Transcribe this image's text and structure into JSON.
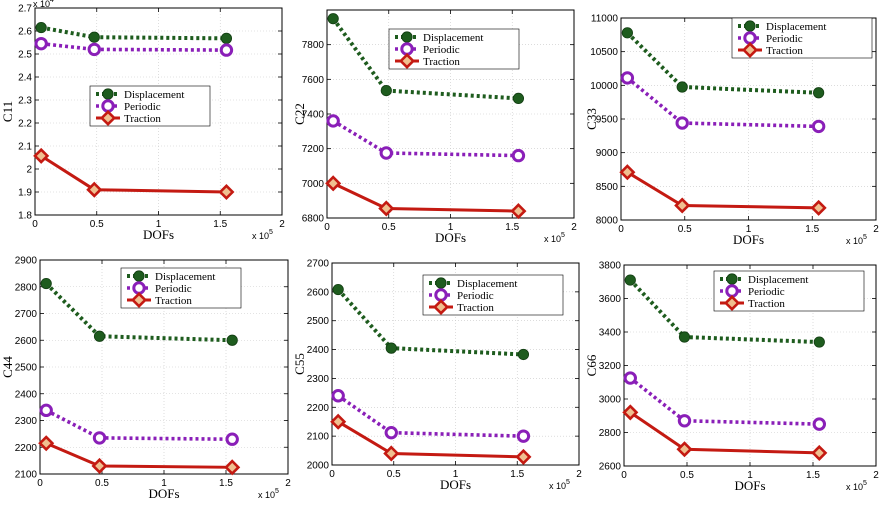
{
  "colors": {
    "displacement": "#1e5c1e",
    "periodic": "#8a1fb8",
    "traction": "#c41a12",
    "traction_marker_fill": "#f0c090"
  },
  "legend_labels": [
    "Displacement",
    "Periodic",
    "Traction"
  ],
  "chart_data": [
    {
      "type": "line",
      "xlabel": "DOFs",
      "ylabel": "C11",
      "x_multiplier": "x 10^5",
      "y_multiplier": "x 10^4",
      "xlim": [
        0,
        2
      ],
      "ylim": [
        1.8,
        2.7
      ],
      "xticks": [
        "0",
        "0.5",
        "1",
        "1.5",
        "2"
      ],
      "yticks": [
        "1.8",
        "1.9",
        "2",
        "2.1",
        "2.2",
        "2.3",
        "2.4",
        "2.5",
        "2.6",
        "2.7"
      ],
      "legend": "center",
      "x": [
        0.05,
        0.48,
        1.55
      ],
      "series": [
        {
          "name": "Displacement",
          "values": [
            2.615,
            2.573,
            2.568
          ]
        },
        {
          "name": "Periodic",
          "values": [
            2.545,
            2.52,
            2.517
          ]
        },
        {
          "name": "Traction",
          "values": [
            2.057,
            1.91,
            1.9
          ]
        }
      ]
    },
    {
      "type": "line",
      "xlabel": "DOFs",
      "ylabel": "C22",
      "x_multiplier": "x 10^5",
      "xlim": [
        0,
        2
      ],
      "ylim": [
        6800,
        8000
      ],
      "xticks": [
        "0",
        "0.5",
        "1",
        "1.5",
        "2"
      ],
      "yticks": [
        "6800",
        "7000",
        "7200",
        "7400",
        "7600",
        "7800"
      ],
      "legend": "top-right",
      "x": [
        0.05,
        0.48,
        1.55
      ],
      "series": [
        {
          "name": "Displacement",
          "values": [
            7950,
            7535,
            7490
          ]
        },
        {
          "name": "Periodic",
          "values": [
            7360,
            7175,
            7160
          ]
        },
        {
          "name": "Traction",
          "values": [
            7000,
            6855,
            6840
          ]
        }
      ]
    },
    {
      "type": "line",
      "xlabel": "DOFs",
      "ylabel": "C33",
      "x_multiplier": "x 10^5",
      "xlim": [
        0,
        2
      ],
      "ylim": [
        8000,
        11000
      ],
      "xticks": [
        "0",
        "0.5",
        "1",
        "1.5",
        "2"
      ],
      "yticks": [
        "8000",
        "8500",
        "9000",
        "9500",
        "10000",
        "10500",
        "11000"
      ],
      "legend": "top-right",
      "x": [
        0.05,
        0.48,
        1.55
      ],
      "series": [
        {
          "name": "Displacement",
          "values": [
            10780,
            9975,
            9890
          ]
        },
        {
          "name": "Periodic",
          "values": [
            10110,
            9440,
            9390
          ]
        },
        {
          "name": "Traction",
          "values": [
            8710,
            8215,
            8180
          ]
        }
      ]
    },
    {
      "type": "line",
      "xlabel": "DOFs",
      "ylabel": "C44",
      "x_multiplier": "x 10^5",
      "xlim": [
        0,
        2
      ],
      "ylim": [
        2100,
        2900
      ],
      "xticks": [
        "0",
        "0.5",
        "1",
        "1.5",
        "2"
      ],
      "yticks": [
        "2100",
        "2200",
        "2300",
        "2400",
        "2500",
        "2600",
        "2700",
        "2800",
        "2900"
      ],
      "legend": "top-right",
      "x": [
        0.05,
        0.48,
        1.55
      ],
      "series": [
        {
          "name": "Displacement",
          "values": [
            2812,
            2615,
            2600
          ]
        },
        {
          "name": "Periodic",
          "values": [
            2338,
            2235,
            2230
          ]
        },
        {
          "name": "Traction",
          "values": [
            2215,
            2130,
            2125
          ]
        }
      ]
    },
    {
      "type": "line",
      "xlabel": "DOFs",
      "ylabel": "C55",
      "x_multiplier": "x 10^5",
      "xlim": [
        0,
        2
      ],
      "ylim": [
        2000,
        2700
      ],
      "xticks": [
        "0",
        "0.5",
        "1",
        "1.5",
        "2"
      ],
      "yticks": [
        "2000",
        "2100",
        "2200",
        "2300",
        "2400",
        "2500",
        "2600",
        "2700"
      ],
      "legend": "top-right",
      "x": [
        0.05,
        0.48,
        1.55
      ],
      "series": [
        {
          "name": "Displacement",
          "values": [
            2608,
            2405,
            2383
          ]
        },
        {
          "name": "Periodic",
          "values": [
            2240,
            2112,
            2100
          ]
        },
        {
          "name": "Traction",
          "values": [
            2150,
            2040,
            2028
          ]
        }
      ]
    },
    {
      "type": "line",
      "xlabel": "DOFs",
      "ylabel": "C66",
      "x_multiplier": "x 10^5",
      "xlim": [
        0,
        2
      ],
      "ylim": [
        2600,
        3800
      ],
      "xticks": [
        "0",
        "0.5",
        "1",
        "1.5",
        "2"
      ],
      "yticks": [
        "2600",
        "2800",
        "3000",
        "3200",
        "3400",
        "3600",
        "3800"
      ],
      "legend": "top-right",
      "x": [
        0.05,
        0.48,
        1.55
      ],
      "series": [
        {
          "name": "Displacement",
          "values": [
            3710,
            3370,
            3340
          ]
        },
        {
          "name": "Periodic",
          "values": [
            3125,
            2870,
            2850
          ]
        },
        {
          "name": "Traction",
          "values": [
            2920,
            2700,
            2678
          ]
        }
      ]
    }
  ]
}
